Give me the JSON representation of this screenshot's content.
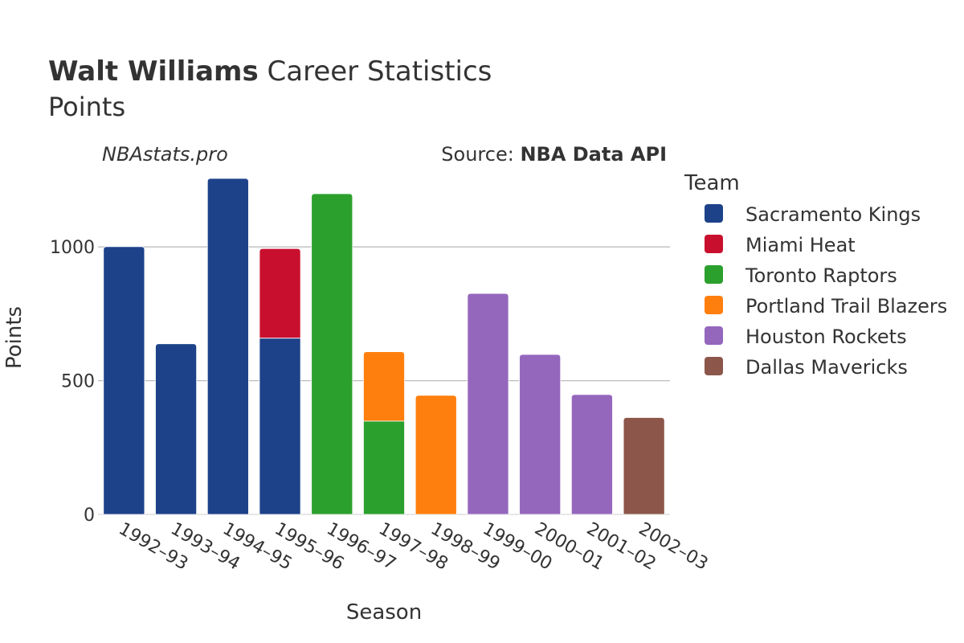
{
  "header": {
    "title_bold": "Walt Williams",
    "title_rest": " Career Statistics",
    "subtitle": "Points",
    "watermark": "NBAstats.pro",
    "source_prefix": "Source: ",
    "source_name": "NBA Data API"
  },
  "legend": {
    "title": "Team"
  },
  "colors": {
    "Sacramento Kings": "#1d428a",
    "Miami Heat": "#c8102e",
    "Toronto Raptors": "#2ca02c",
    "Portland Trail Blazers": "#ff7f0e",
    "Houston Rockets": "#9467bd",
    "Dallas Mavericks": "#8c564b"
  },
  "chart_data": {
    "type": "bar",
    "stacked": true,
    "xlabel": "Season",
    "ylabel": "Points",
    "ylim": [
      0,
      1280
    ],
    "yticks": [
      0,
      500,
      1000
    ],
    "grid": true,
    "legend_position": "right",
    "categories": [
      "1992–93",
      "1993–94",
      "1994–95",
      "1995–96",
      "1996–97",
      "1997–98",
      "1998–99",
      "1999–00",
      "2000–01",
      "2001–02",
      "2002–03"
    ],
    "series": [
      {
        "name": "Sacramento Kings",
        "values": [
          1001,
          638,
          1256,
          659,
          0,
          0,
          0,
          0,
          0,
          0,
          0
        ]
      },
      {
        "name": "Miami Heat",
        "values": [
          0,
          0,
          0,
          335,
          0,
          0,
          0,
          0,
          0,
          0,
          0
        ]
      },
      {
        "name": "Toronto Raptors",
        "values": [
          0,
          0,
          0,
          0,
          1199,
          349,
          0,
          0,
          0,
          0,
          0
        ]
      },
      {
        "name": "Portland Trail Blazers",
        "values": [
          0,
          0,
          0,
          0,
          0,
          259,
          445,
          0,
          0,
          0,
          0
        ]
      },
      {
        "name": "Houston Rockets",
        "values": [
          0,
          0,
          0,
          0,
          0,
          0,
          0,
          826,
          598,
          448,
          0
        ]
      },
      {
        "name": "Dallas Mavericks",
        "values": [
          0,
          0,
          0,
          0,
          0,
          0,
          0,
          0,
          0,
          0,
          362
        ]
      }
    ]
  }
}
